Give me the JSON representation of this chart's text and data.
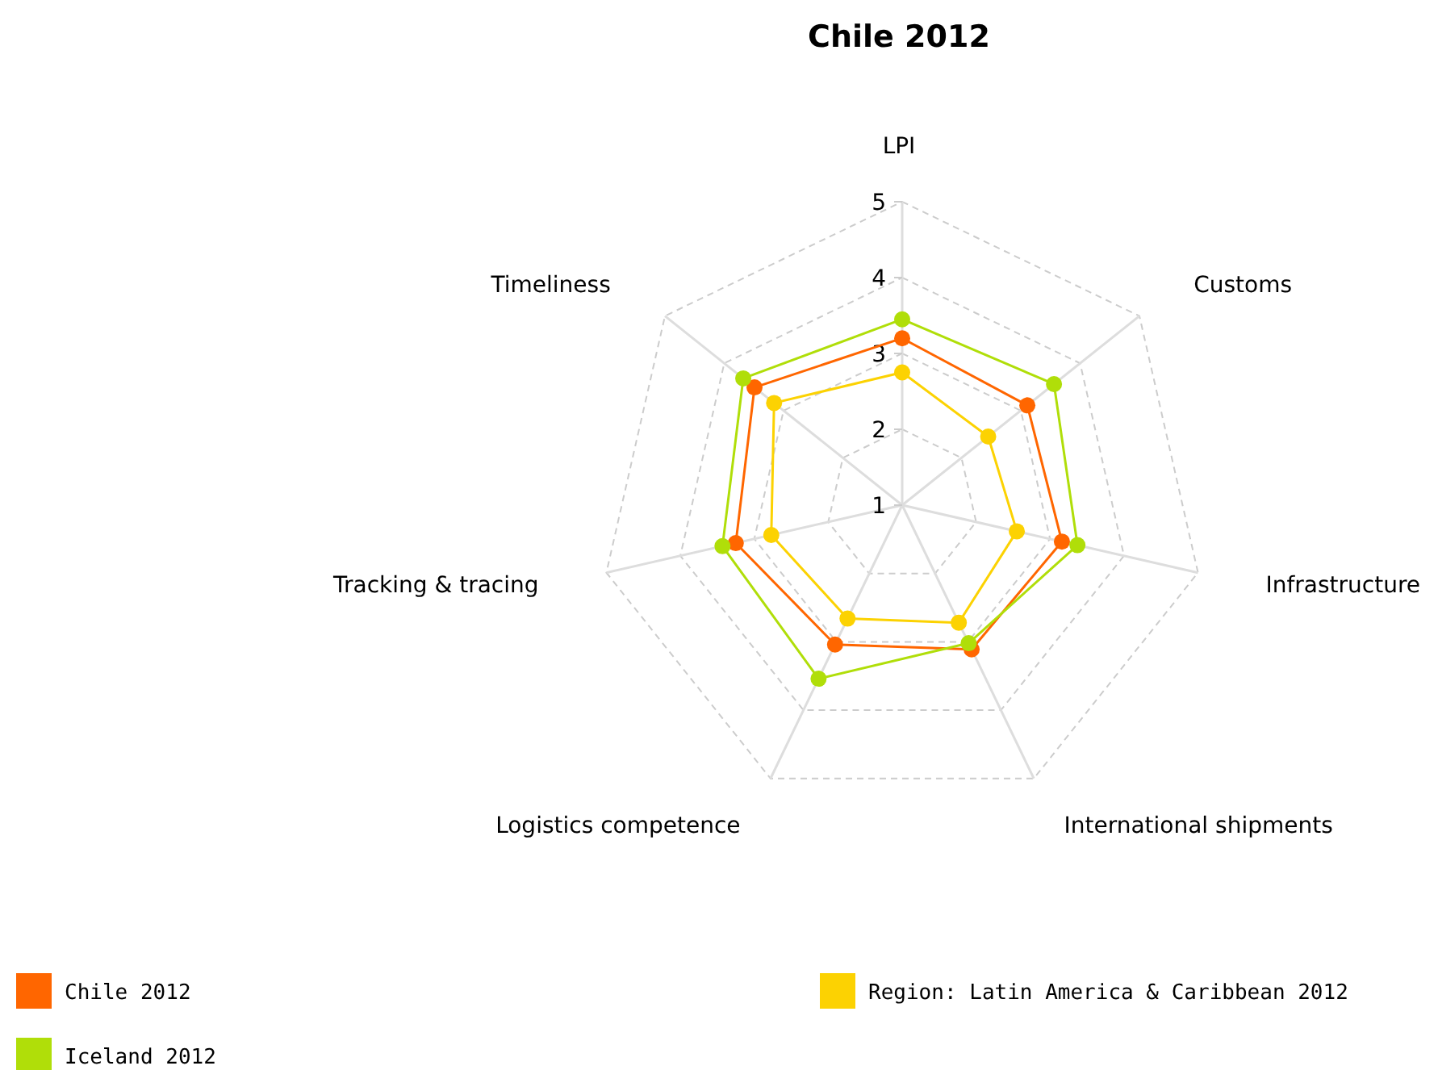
{
  "chart_data": {
    "type": "radar",
    "title": "Chile 2012",
    "categories": [
      "LPI",
      "Customs",
      "Infrastructure",
      "International shipments",
      "Logistics competence",
      "Tracking & tracing",
      "Timeliness"
    ],
    "series": [
      {
        "name": "Chile 2012",
        "color": "#ff6600",
        "values": [
          3.2,
          3.11,
          3.16,
          3.11,
          3.04,
          3.25,
          3.49
        ]
      },
      {
        "name": "Region: Latin America & Caribbean 2012",
        "color": "#fcd202",
        "values": [
          2.75,
          2.45,
          2.55,
          2.72,
          2.66,
          2.77,
          3.16
        ]
      },
      {
        "name": "Iceland 2012",
        "color": "#b0de09",
        "values": [
          3.45,
          3.56,
          3.37,
          3.02,
          3.54,
          3.43,
          3.68
        ]
      }
    ],
    "ylim": [
      1,
      5
    ],
    "yticks": [
      1,
      2,
      3,
      4,
      5
    ],
    "grid": true,
    "legend": "bottom",
    "marker": "circle"
  }
}
